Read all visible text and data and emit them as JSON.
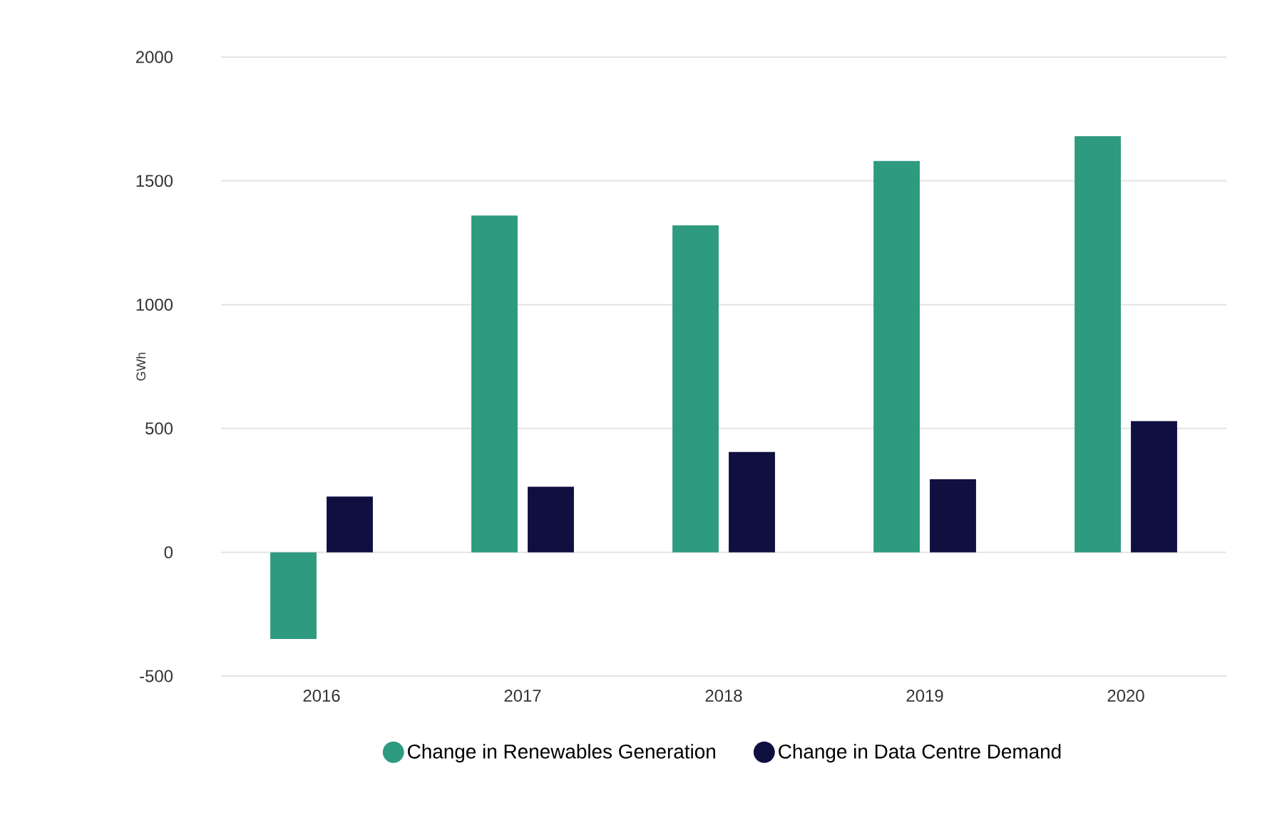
{
  "chart_data": {
    "type": "bar",
    "ylabel": "GWh",
    "categories": [
      "2016",
      "2017",
      "2018",
      "2019",
      "2020"
    ],
    "series": [
      {
        "name": "Change in Renewables Generation",
        "color": "#2e9a7f",
        "values": [
          -350,
          1360,
          1320,
          1580,
          1680
        ]
      },
      {
        "name": "Change in Data Centre Demand",
        "color": "#0f0f40",
        "values": [
          225,
          265,
          405,
          295,
          530
        ]
      }
    ],
    "ylim": [
      -500,
      2000
    ],
    "yticks": [
      -500,
      0,
      500,
      1000,
      1500,
      2000
    ],
    "grid": "y",
    "legend": "bottom"
  }
}
